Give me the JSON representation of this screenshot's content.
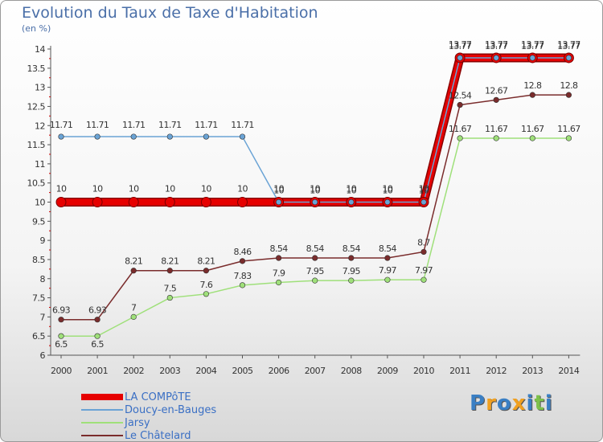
{
  "chart_data": {
    "type": "line",
    "title": "Evolution du Taux de Taxe d'Habitation",
    "subtitle": "(en %)",
    "x": [
      "2000",
      "2001",
      "2002",
      "2003",
      "2004",
      "2005",
      "2006",
      "2007",
      "2008",
      "2009",
      "2010",
      "2011",
      "2012",
      "2013",
      "2014"
    ],
    "ylim": [
      6,
      14
    ],
    "yticks": [
      "6",
      "6.5",
      "7",
      "7.5",
      "8",
      "8.5",
      "9",
      "9.5",
      "10",
      "10.5",
      "11",
      "11.5",
      "12",
      "12.5",
      "13",
      "13.5",
      "14"
    ],
    "grid": false,
    "legend_position": "bottom-left",
    "series": [
      {
        "name": "LA COMPôTE",
        "color": "#e60000",
        "values": [
          10,
          10,
          10,
          10,
          10,
          10,
          10,
          10,
          10,
          10,
          10,
          13.77,
          13.77,
          13.77,
          13.77
        ],
        "labels": [
          "10",
          "10",
          "10",
          "10",
          "10",
          "10",
          "10",
          "10",
          "10",
          "10",
          "10",
          "13.77",
          "13.77",
          "13.77",
          "13.77"
        ]
      },
      {
        "name": "Doucy-en-Bauges",
        "color": "#6aa3d5",
        "values": [
          11.71,
          11.71,
          11.71,
          11.71,
          11.71,
          11.71,
          10,
          10,
          10,
          10,
          10,
          13.77,
          13.77,
          13.77,
          13.77
        ],
        "labels": [
          "11.71",
          "11.71",
          "11.71",
          "11.71",
          "11.71",
          "11.71",
          "10",
          "10",
          "10",
          "10",
          "10",
          "13.77",
          "13.77",
          "13.77",
          "13.77"
        ]
      },
      {
        "name": "Jarsy",
        "color": "#9fe07a",
        "values": [
          6.5,
          6.5,
          7,
          7.5,
          7.6,
          7.83,
          7.9,
          7.95,
          7.95,
          7.97,
          7.97,
          11.67,
          11.67,
          11.67,
          11.67
        ],
        "labels": [
          "6.5",
          "6.5",
          "7",
          "7.5",
          "7.6",
          "7.83",
          "7.9",
          "7.95",
          "7.95",
          "7.97",
          "7.97",
          "11.67",
          "11.67",
          "11.67",
          "11.67"
        ]
      },
      {
        "name": "Le Châtelard",
        "color": "#7a2c2c",
        "values": [
          6.93,
          6.93,
          8.21,
          8.21,
          8.21,
          8.46,
          8.54,
          8.54,
          8.54,
          8.54,
          8.7,
          12.54,
          12.67,
          12.8,
          12.8
        ],
        "labels": [
          "6.93",
          "6.93",
          "8.21",
          "8.21",
          "8.21",
          "8.46",
          "8.54",
          "8.54",
          "8.54",
          "8.54",
          "8.7",
          "12.54",
          "12.67",
          "12.8",
          "12.8"
        ]
      }
    ]
  },
  "logo": {
    "letters": [
      "P",
      "r",
      "o",
      "x",
      "i",
      "t",
      "i"
    ],
    "colors": [
      "#3a7fc4",
      "#f0a020",
      "#3a7fc4",
      "#f0a020",
      "#3a7fc4",
      "#7cc04a",
      "#3a7fc4"
    ]
  }
}
